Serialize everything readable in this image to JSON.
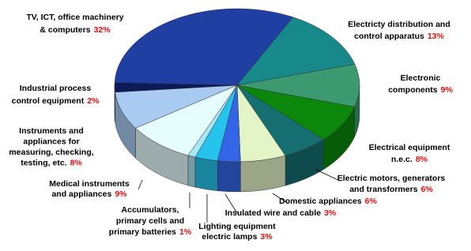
{
  "chart_data": {
    "type": "pie3d",
    "categories": [
      [
        "TV, ICT, office machinery",
        "& computers"
      ],
      [
        "Electricty distribution and",
        "control apparatus"
      ],
      [
        "Electronic",
        "components"
      ],
      [
        "Electrical equipment",
        "n.e.c."
      ],
      [
        "Electric motors, generators",
        "and transformers"
      ],
      [
        "Domestic appliances"
      ],
      [
        "Insulated wire and cable"
      ],
      [
        "Lighting equipment",
        "electric lamps"
      ],
      [
        "Accumulators,",
        "primary cells and",
        "primary batteries"
      ],
      [
        "Medical instruments",
        "and appliances"
      ],
      [
        "Instruments and",
        "appliances for",
        "measuring, checking,",
        "testing, etc."
      ],
      [
        "Industrial process",
        "control equipment"
      ]
    ],
    "values": [
      32,
      13,
      9,
      8,
      6,
      6,
      3,
      3,
      1,
      9,
      8,
      2
    ],
    "value_labels": [
      "32%",
      "13%",
      "9%",
      "8%",
      "6%",
      "6%",
      "3%",
      "3%",
      "1%",
      "9%",
      "8%",
      "2%"
    ],
    "colors": [
      "#1f3fa3",
      "#17898a",
      "#3b9a6f",
      "#0b870b",
      "#156f70",
      "#e3f4c6",
      "#3366e6",
      "#26c3ec",
      "#a9e6f6",
      "#e6fdfd",
      "#a9cbf2",
      "#0b1a58"
    ]
  }
}
